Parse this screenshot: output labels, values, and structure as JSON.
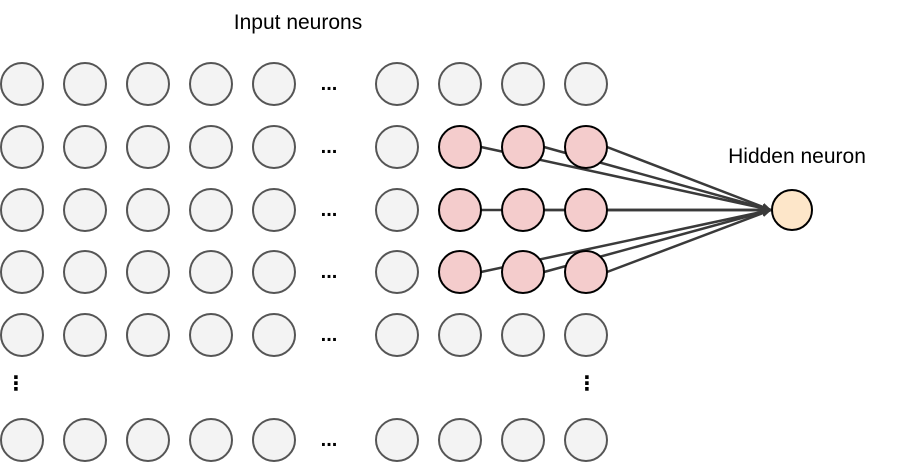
{
  "labels": {
    "input": "Input neurons",
    "hidden": "Hidden neuron",
    "ellipsis": "...",
    "vertical_ellipsis": "⋮"
  },
  "colors": {
    "neuron_fill": "#f3f3f3",
    "receptive_field_fill": "#f4cccc",
    "hidden_fill": "#fde6c9",
    "neuron_stroke": "#000000",
    "input_stroke": "#555555",
    "arrow": "#3a3a3a"
  },
  "grid": {
    "left_block_columns": 5,
    "right_block_columns": 4,
    "rows_shown": 6,
    "vertical_gap_after_row": 5
  },
  "receptive_field": {
    "rows": [
      2,
      3,
      4
    ],
    "right_block_columns": [
      2,
      3,
      4
    ],
    "connections": 9
  }
}
